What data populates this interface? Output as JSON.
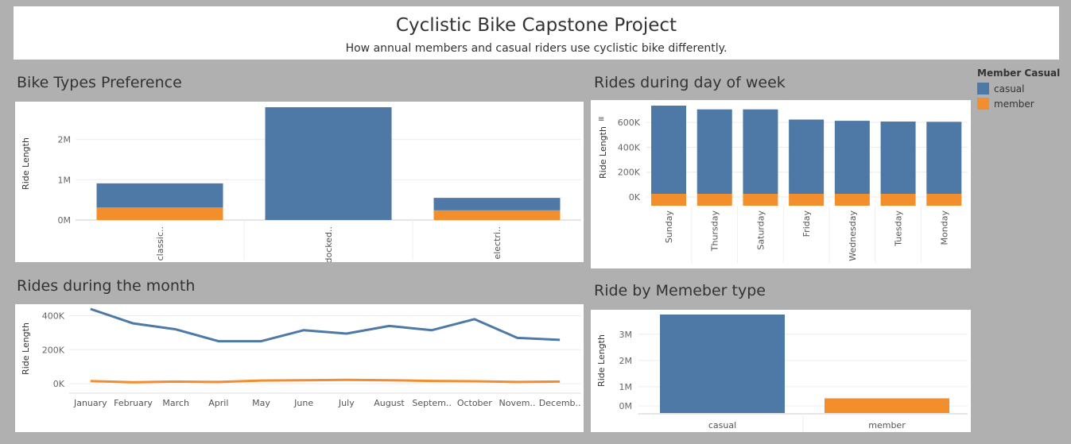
{
  "header": {
    "title": "Cyclistic Bike Capstone Project",
    "subtitle": "How annual members and casual riders use cyclistic bike differently."
  },
  "legend": {
    "title": "Member Casual",
    "items": [
      {
        "label": "casual",
        "color": "#4e79a7"
      },
      {
        "label": "member",
        "color": "#f28e2b"
      }
    ]
  },
  "chart_data": [
    {
      "id": "bike_types",
      "type": "bar",
      "stacked": true,
      "title": "Bike Types Preference",
      "ylabel": "Ride Length",
      "categories": [
        "classic..",
        "docked..",
        "electri.."
      ],
      "series": [
        {
          "name": "member",
          "values": [
            310000,
            0,
            240000
          ]
        },
        {
          "name": "casual",
          "values": [
            600000,
            2800000,
            310000
          ]
        }
      ],
      "yticks": [
        {
          "value": 0,
          "label": "0M"
        },
        {
          "value": 1000000,
          "label": "1M"
        },
        {
          "value": 2000000,
          "label": "2M"
        }
      ],
      "ylim": [
        0,
        2800000
      ]
    },
    {
      "id": "day_of_week",
      "type": "bar",
      "stacked": true,
      "title": "Rides during day of week",
      "ylabel": "Ride Length",
      "categories": [
        "Sunday",
        "Thursday",
        "Saturday",
        "Friday",
        "Wednesday",
        "Tuesday",
        "Monday"
      ],
      "series": [
        {
          "name": "member",
          "values": [
            95000,
            85000,
            95000,
            88000,
            88000,
            85000,
            85000
          ]
        },
        {
          "name": "casual",
          "values": [
            640000,
            620000,
            610000,
            535000,
            525000,
            522000,
            520000
          ]
        }
      ],
      "yticks": [
        {
          "value": 0,
          "label": "0K"
        },
        {
          "value": 200000,
          "label": "200K"
        },
        {
          "value": 400000,
          "label": "400K"
        },
        {
          "value": 600000,
          "label": "600K"
        }
      ],
      "ylim": [
        0,
        735000
      ]
    },
    {
      "id": "month",
      "type": "line",
      "title": "Rides during the month",
      "ylabel": "Ride Length",
      "categories": [
        "January",
        "February",
        "March",
        "April",
        "May",
        "June",
        "July",
        "August",
        "Septem..",
        "October",
        "Novem..",
        "Decemb.."
      ],
      "series": [
        {
          "name": "casual",
          "values": [
            440000,
            355000,
            320000,
            250000,
            250000,
            315000,
            295000,
            340000,
            315000,
            380000,
            270000,
            258000
          ]
        },
        {
          "name": "member",
          "values": [
            15000,
            8000,
            12000,
            10000,
            18000,
            20000,
            22000,
            20000,
            16000,
            14000,
            10000,
            12000
          ]
        }
      ],
      "yticks": [
        {
          "value": 0,
          "label": "0K"
        },
        {
          "value": 200000,
          "label": "200K"
        },
        {
          "value": 400000,
          "label": "400K"
        }
      ],
      "ylim": [
        0,
        440000
      ]
    },
    {
      "id": "member_type",
      "type": "bar",
      "title": "Ride by Memeber type",
      "ylabel": "Ride Length",
      "categories": [
        "casual",
        "member"
      ],
      "values": [
        3750000,
        560000
      ],
      "yticks": [
        {
          "value": 0,
          "label": "0M"
        },
        {
          "value": 1000000,
          "label": "1M"
        },
        {
          "value": 2000000,
          "label": "2M"
        },
        {
          "value": 3000000,
          "label": "3M"
        }
      ],
      "ylim": [
        0,
        3750000
      ]
    }
  ]
}
